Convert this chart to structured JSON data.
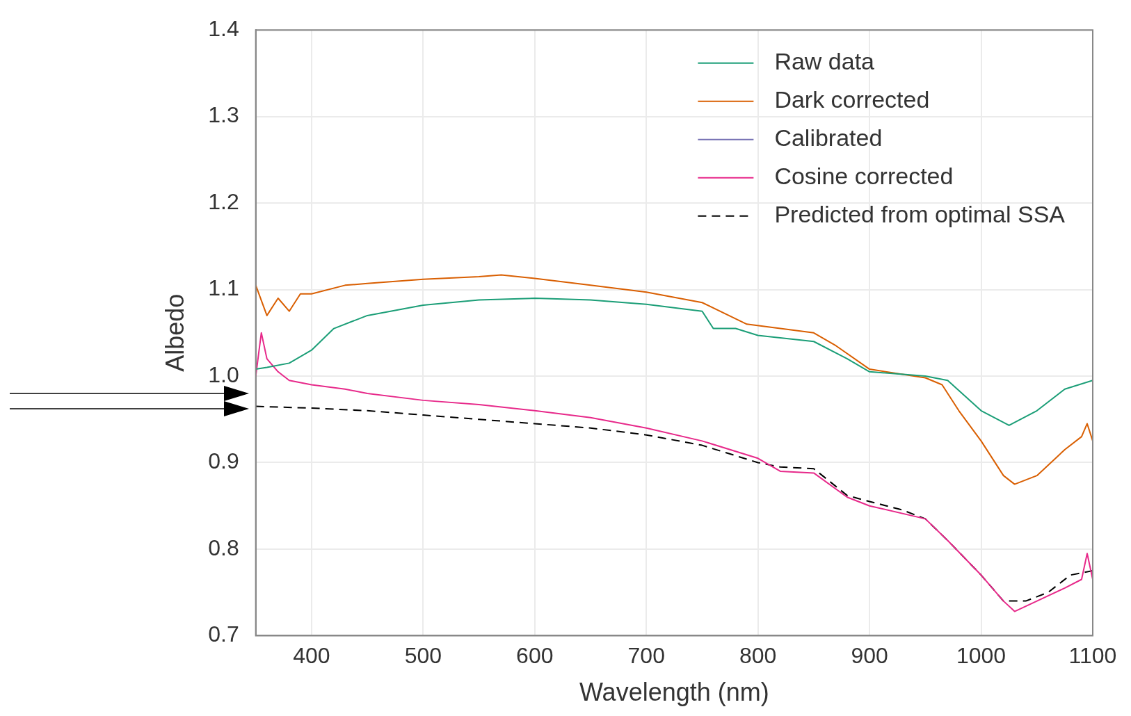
{
  "chart_data": {
    "type": "line",
    "xlabel": "Wavelength (nm)",
    "ylabel": "Albedo",
    "xlim": [
      350,
      1100
    ],
    "ylim": [
      0.7,
      1.4
    ],
    "xticks": [
      400,
      500,
      600,
      700,
      800,
      900,
      1000,
      1100
    ],
    "yticks": [
      0.7,
      0.8,
      0.9,
      {
        "value": 1,
        "label": "1.0"
      },
      1.1,
      1.2,
      1.3,
      1.4
    ],
    "grid": true,
    "legend": "top right",
    "marker": "none",
    "series": [
      {
        "name": "Raw data",
        "color": "#1b9e77",
        "line_style": "solid",
        "x": [
          350,
          360,
          380,
          400,
          420,
          450,
          500,
          550,
          600,
          650,
          700,
          750,
          760,
          780,
          800,
          850,
          880,
          900,
          950,
          970,
          1000,
          1025,
          1050,
          1075,
          1100
        ],
        "values": [
          1.008,
          1.01,
          1.015,
          1.03,
          1.055,
          1.07,
          1.082,
          1.088,
          1.09,
          1.088,
          1.083,
          1.075,
          1.055,
          1.055,
          1.047,
          1.04,
          1.02,
          1.005,
          1.0,
          0.995,
          0.96,
          0.943,
          0.96,
          0.985,
          0.995
        ]
      },
      {
        "name": "Dark corrected",
        "color": "#d95f02",
        "line_style": "solid",
        "x": [
          350,
          360,
          370,
          380,
          390,
          400,
          430,
          450,
          500,
          550,
          570,
          600,
          650,
          700,
          750,
          790,
          820,
          850,
          870,
          900,
          950,
          965,
          980,
          1000,
          1020,
          1030,
          1050,
          1075,
          1090,
          1095,
          1100
        ],
        "values": [
          1.105,
          1.07,
          1.09,
          1.075,
          1.095,
          1.095,
          1.105,
          1.107,
          1.112,
          1.115,
          1.117,
          1.113,
          1.105,
          1.097,
          1.085,
          1.06,
          1.055,
          1.05,
          1.035,
          1.008,
          0.998,
          0.99,
          0.96,
          0.925,
          0.885,
          0.875,
          0.885,
          0.915,
          0.93,
          0.945,
          0.925
        ]
      },
      {
        "name": "Calibrated",
        "color": "#7570b3",
        "line_style": "solid"
      },
      {
        "name": "Cosine corrected",
        "color": "#e7298a",
        "line_style": "solid",
        "x": [
          350,
          355,
          360,
          370,
          380,
          400,
          430,
          450,
          500,
          550,
          600,
          650,
          700,
          750,
          800,
          820,
          850,
          880,
          900,
          950,
          970,
          1000,
          1020,
          1030,
          1050,
          1075,
          1090,
          1095,
          1100
        ],
        "values": [
          1.0,
          1.05,
          1.02,
          1.005,
          0.995,
          0.99,
          0.985,
          0.98,
          0.972,
          0.967,
          0.96,
          0.952,
          0.94,
          0.925,
          0.905,
          0.89,
          0.888,
          0.86,
          0.85,
          0.835,
          0.81,
          0.77,
          0.74,
          0.728,
          0.74,
          0.755,
          0.765,
          0.795,
          0.765
        ]
      },
      {
        "name": "Predicted from optimal SSA",
        "color": "#000000",
        "line_style": "dashed",
        "x": [
          350,
          400,
          450,
          500,
          550,
          600,
          650,
          700,
          750,
          800,
          820,
          850,
          880,
          900,
          930,
          950,
          970,
          1000,
          1020,
          1040,
          1060,
          1080,
          1100
        ],
        "values": [
          0.965,
          0.963,
          0.96,
          0.955,
          0.95,
          0.945,
          0.94,
          0.932,
          0.92,
          0.9,
          0.895,
          0.893,
          0.862,
          0.855,
          0.845,
          0.835,
          0.81,
          0.77,
          0.74,
          0.74,
          0.75,
          0.77,
          0.775
        ]
      }
    ]
  }
}
